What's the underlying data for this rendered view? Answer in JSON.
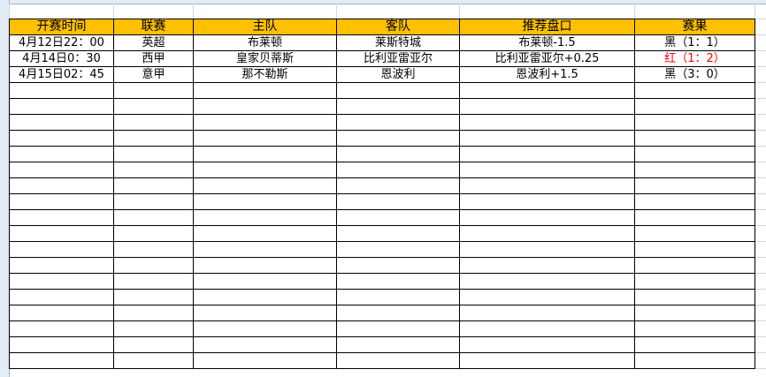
{
  "headers": [
    "开赛时间",
    "联赛",
    "主队",
    "客队",
    "推荐盘口",
    "赛果"
  ],
  "rows": [
    {
      "time": "4月12日22：00",
      "league": "英超",
      "home": "布莱顿",
      "away": "莱斯特城",
      "tip": "布莱顿-1.5",
      "result": "黑（1：1）",
      "result_color": "#000000"
    },
    {
      "time": "4月14日0：30",
      "league": "西甲",
      "home": "皇家贝蒂斯",
      "away": "比利亚雷亚尔",
      "tip": "比利亚雷亚尔+0.25",
      "result": "红（1：2）",
      "result_color": "#ff0000"
    },
    {
      "time": "4月15日02：45",
      "league": "意甲",
      "home": "那不勒斯",
      "away": "恩波利",
      "tip": "恩波利+1.5",
      "result": "黑（3：0）",
      "result_color": "#000000"
    }
  ],
  "colors": {
    "header_fill": "#ffc000",
    "loss_red": "#ff0000"
  }
}
